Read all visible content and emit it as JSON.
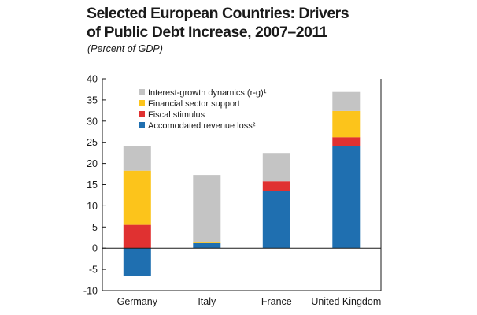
{
  "header": {
    "title_line1": "Selected European Countries: Drivers",
    "title_line2": "of Public Debt Increase, 2007–2011",
    "subtitle": "(Percent of GDP)"
  },
  "chart_data": {
    "type": "bar",
    "stacked": true,
    "categories": [
      "Germany",
      "Italy",
      "France",
      "United Kingdom"
    ],
    "series": [
      {
        "name": "Accomodated revenue loss²",
        "color": "#1f6fb0",
        "values": [
          -6.5,
          1.2,
          13.5,
          24.2
        ]
      },
      {
        "name": "Fiscal stimulus",
        "color": "#e03131",
        "values": [
          5.5,
          0.0,
          2.3,
          2.0
        ]
      },
      {
        "name": "Financial sector support",
        "color": "#fcc41b",
        "values": [
          12.8,
          0.3,
          0.0,
          6.2
        ]
      },
      {
        "name": "Interest-growth dynamics (r-g)¹",
        "color": "#c4c4c4",
        "values": [
          5.8,
          15.8,
          6.7,
          4.5
        ]
      }
    ],
    "ylim": [
      -10,
      40
    ],
    "yticks": [
      "40",
      "35",
      "30",
      "25",
      "20",
      "15",
      "10",
      "5",
      "0",
      "-5",
      "-10"
    ],
    "xlabel": "",
    "ylabel": "",
    "legend_position": "top-left",
    "grid": false
  }
}
